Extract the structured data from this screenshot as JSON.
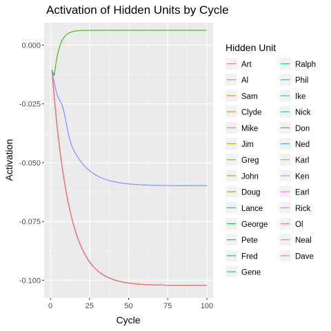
{
  "chart_data": {
    "type": "line",
    "title": "Activation of Hidden Units by Cycle",
    "xlabel": "Cycle",
    "ylabel": "Activation",
    "xlim": [
      -4,
      104
    ],
    "ylim": [
      -0.1075,
      0.0095
    ],
    "x_ticks": [
      0,
      25,
      50,
      75,
      100
    ],
    "x_tick_labels": [
      "0",
      "25",
      "50",
      "75",
      "100"
    ],
    "y_ticks": [
      0.0,
      -0.025,
      -0.05,
      -0.075,
      -0.1
    ],
    "y_tick_labels": [
      "0.000",
      "-0.025",
      "-0.050",
      "-0.075",
      "-0.100"
    ],
    "x_range": [
      1,
      100
    ],
    "grid": true,
    "legend": {
      "title": "Hidden Unit",
      "placement": "right",
      "columns": 2
    },
    "series": [
      {
        "name": "Art",
        "color": "#F8766D",
        "start": -0.0105,
        "end": -0.1022,
        "rate": 0.092
      },
      {
        "name": "Al",
        "color": "#EF7F49",
        "start": -0.0105,
        "end": -0.1022,
        "rate": 0.092
      },
      {
        "name": "Sam",
        "color": "#E58700",
        "start": -0.0105,
        "end": -0.1022,
        "rate": 0.092
      },
      {
        "name": "Clyde",
        "color": "#D89000",
        "start": -0.0105,
        "end": -0.1022,
        "rate": 0.092
      },
      {
        "name": "Mike",
        "color": "#C99800",
        "start": -0.0105,
        "end": -0.1022,
        "rate": 0.092
      },
      {
        "name": "Jim",
        "color": "#B79F00",
        "start": -0.0105,
        "end": -0.1022,
        "rate": 0.092
      },
      {
        "name": "Greg",
        "color": "#A3A500",
        "start": -0.0105,
        "end": -0.1022,
        "rate": 0.092
      },
      {
        "name": "John",
        "color": "#8BAB00",
        "start": -0.0105,
        "end": -0.1022,
        "rate": 0.092
      },
      {
        "name": "Doug",
        "color": "#6BB100",
        "start": -0.0105,
        "end": -0.1022,
        "rate": 0.092
      },
      {
        "name": "Lance",
        "color": "#39B600",
        "start": -0.0105,
        "end": 0.0063,
        "rate": 0.3,
        "dip": -0.013
      },
      {
        "name": "George",
        "color": "#00BA38",
        "start": -0.0105,
        "end": -0.1022,
        "rate": 0.092
      },
      {
        "name": "Pete",
        "color": "#00BD5F",
        "start": -0.0105,
        "end": -0.1022,
        "rate": 0.092
      },
      {
        "name": "Fred",
        "color": "#00BF7D",
        "start": -0.0105,
        "end": -0.1022,
        "rate": 0.092
      },
      {
        "name": "Gene",
        "color": "#00C097",
        "start": -0.0105,
        "end": -0.1022,
        "rate": 0.092
      },
      {
        "name": "Ralph",
        "color": "#00C0AF",
        "start": -0.0105,
        "end": -0.1022,
        "rate": 0.092
      },
      {
        "name": "Phil",
        "color": "#00BFC4",
        "start": -0.0105,
        "end": -0.1022,
        "rate": 0.092
      },
      {
        "name": "Ike",
        "color": "#00BCD8",
        "start": -0.0105,
        "end": -0.1022,
        "rate": 0.092
      },
      {
        "name": "Nick",
        "color": "#00B8E7",
        "start": -0.0105,
        "end": -0.1022,
        "rate": 0.092
      },
      {
        "name": "Don",
        "color": "#00B0F6",
        "start": -0.0105,
        "end": -0.1022,
        "rate": 0.092
      },
      {
        "name": "Ned",
        "color": "#35A2FF",
        "start": -0.0105,
        "end": -0.0598,
        "rate": 0.085,
        "shoulder": true
      },
      {
        "name": "Karl",
        "color": "#9590FF",
        "start": -0.0105,
        "end": -0.0598,
        "rate": 0.085,
        "shoulder": true
      },
      {
        "name": "Ken",
        "color": "#C77CFF",
        "start": -0.0105,
        "end": -0.1022,
        "rate": 0.092
      },
      {
        "name": "Earl",
        "color": "#E76BF3",
        "start": -0.0105,
        "end": -0.1022,
        "rate": 0.092
      },
      {
        "name": "Rick",
        "color": "#FA62DB",
        "start": -0.0105,
        "end": -0.1022,
        "rate": 0.092
      },
      {
        "name": "Ol",
        "color": "#FF62BC",
        "start": -0.0105,
        "end": -0.1022,
        "rate": 0.092
      },
      {
        "name": "Neal",
        "color": "#FF6C91",
        "start": -0.0105,
        "end": -0.1022,
        "rate": 0.092
      },
      {
        "name": "Dave",
        "color": "#F8766D",
        "start": -0.0105,
        "end": -0.1022,
        "rate": 0.092
      }
    ]
  }
}
